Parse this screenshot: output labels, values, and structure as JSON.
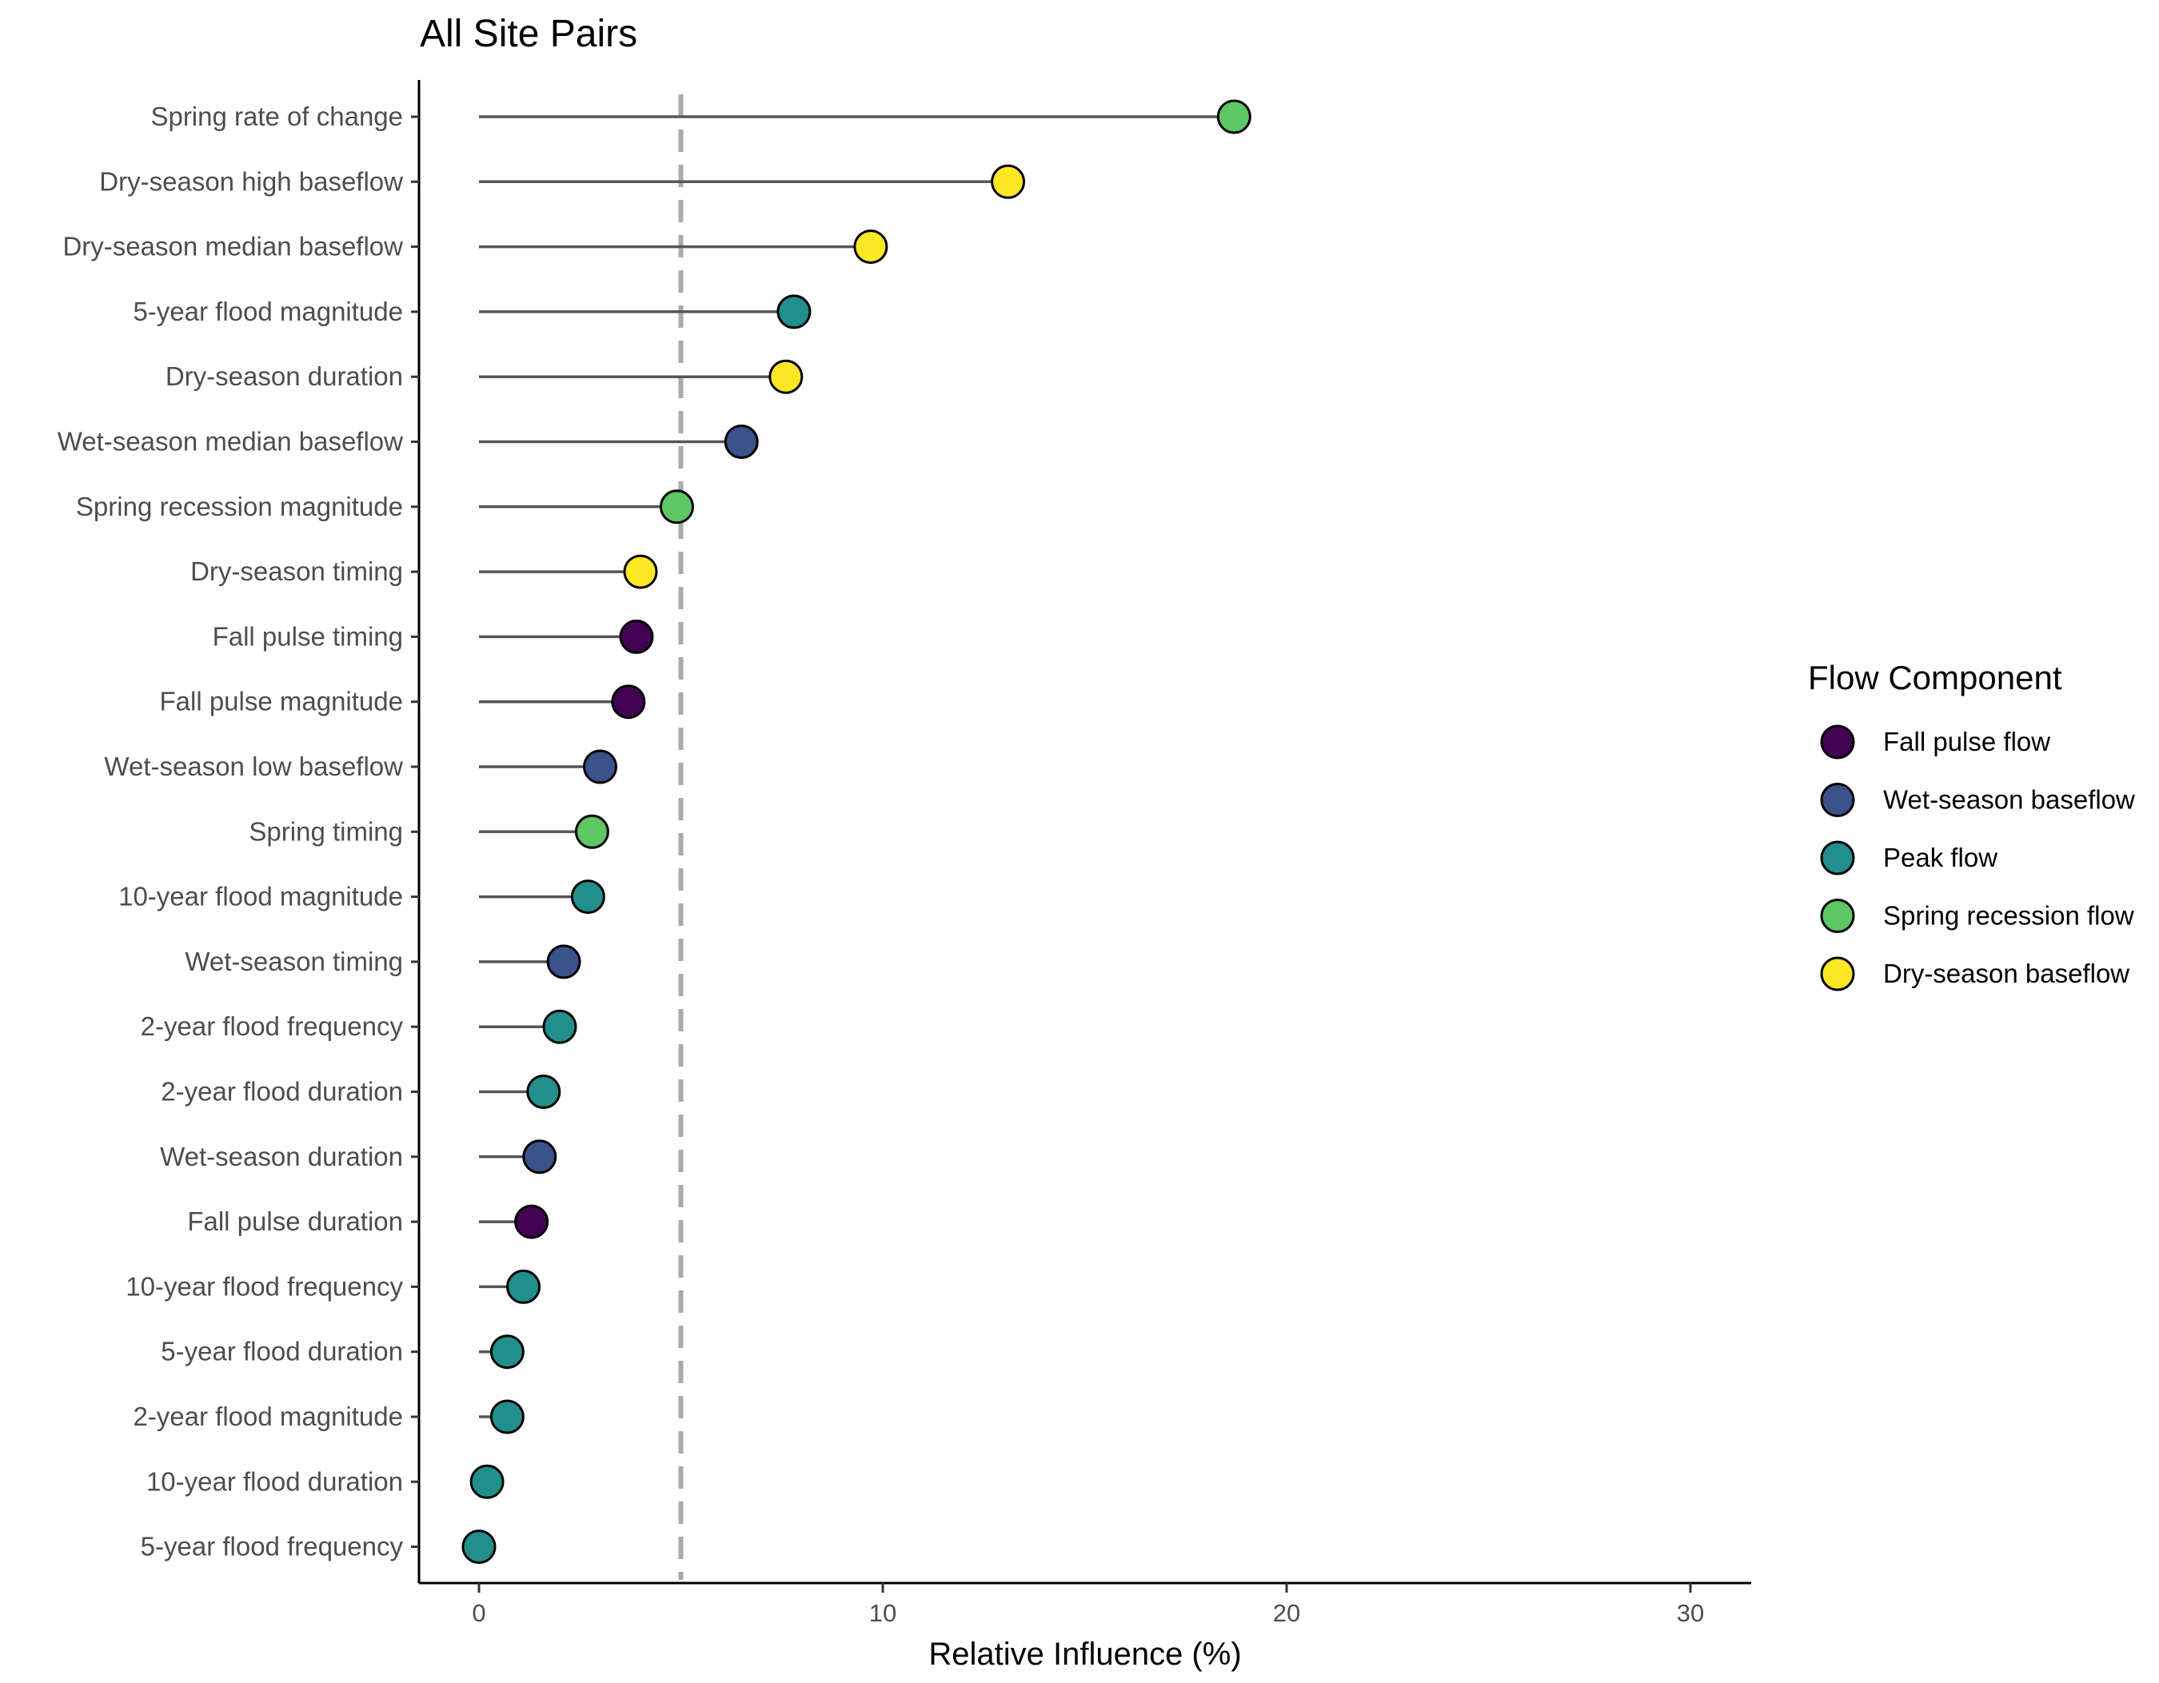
{
  "chart_data": {
    "type": "lollipop",
    "title": "All Site Pairs",
    "xlabel": "Relative Influence (%)",
    "ylabel": "",
    "xlim": [
      -0.7,
      31.5
    ],
    "x_ticks": [
      0,
      10,
      20,
      30
    ],
    "reference_line": {
      "x": 5,
      "style": "dashed",
      "color": "#aaaaaa"
    },
    "grid": false,
    "legend": {
      "title": "Flow Component",
      "position": "right",
      "entries": [
        {
          "name": "Fall pulse flow",
          "color": "#440154"
        },
        {
          "name": "Wet-season baseflow",
          "color": "#3b528b"
        },
        {
          "name": "Peak flow",
          "color": "#21908c"
        },
        {
          "name": "Spring recession flow",
          "color": "#5dc863"
        },
        {
          "name": "Dry-season baseflow",
          "color": "#fde725"
        }
      ]
    },
    "points": [
      {
        "label": "Spring rate of change",
        "value": 18.7,
        "group": "Spring recession flow"
      },
      {
        "label": "Dry-season high baseflow",
        "value": 13.1,
        "group": "Dry-season baseflow"
      },
      {
        "label": "Dry-season median baseflow",
        "value": 9.7,
        "group": "Dry-season baseflow"
      },
      {
        "label": "5-year flood magnitude",
        "value": 7.8,
        "group": "Peak flow"
      },
      {
        "label": "Dry-season duration",
        "value": 7.6,
        "group": "Dry-season baseflow"
      },
      {
        "label": "Wet-season median baseflow",
        "value": 6.5,
        "group": "Wet-season baseflow"
      },
      {
        "label": "Spring recession magnitude",
        "value": 4.9,
        "group": "Spring recession flow"
      },
      {
        "label": "Dry-season timing",
        "value": 4.0,
        "group": "Dry-season baseflow"
      },
      {
        "label": "Fall pulse timing",
        "value": 3.9,
        "group": "Fall pulse flow"
      },
      {
        "label": "Fall pulse magnitude",
        "value": 3.7,
        "group": "Fall pulse flow"
      },
      {
        "label": "Wet-season low baseflow",
        "value": 3.0,
        "group": "Wet-season baseflow"
      },
      {
        "label": "Spring timing",
        "value": 2.8,
        "group": "Spring recession flow"
      },
      {
        "label": "10-year flood magnitude",
        "value": 2.7,
        "group": "Peak flow"
      },
      {
        "label": "Wet-season timing",
        "value": 2.1,
        "group": "Wet-season baseflow"
      },
      {
        "label": "2-year flood frequency",
        "value": 2.0,
        "group": "Peak flow"
      },
      {
        "label": "2-year flood duration",
        "value": 1.6,
        "group": "Peak flow"
      },
      {
        "label": "Wet-season duration",
        "value": 1.5,
        "group": "Wet-season baseflow"
      },
      {
        "label": "Fall pulse duration",
        "value": 1.3,
        "group": "Fall pulse flow"
      },
      {
        "label": "10-year flood frequency",
        "value": 1.1,
        "group": "Peak flow"
      },
      {
        "label": "5-year flood duration",
        "value": 0.7,
        "group": "Peak flow"
      },
      {
        "label": "2-year flood magnitude",
        "value": 0.7,
        "group": "Peak flow"
      },
      {
        "label": "10-year flood duration",
        "value": 0.2,
        "group": "Peak flow"
      },
      {
        "label": "5-year flood frequency",
        "value": 0.0,
        "group": "Peak flow"
      }
    ]
  }
}
